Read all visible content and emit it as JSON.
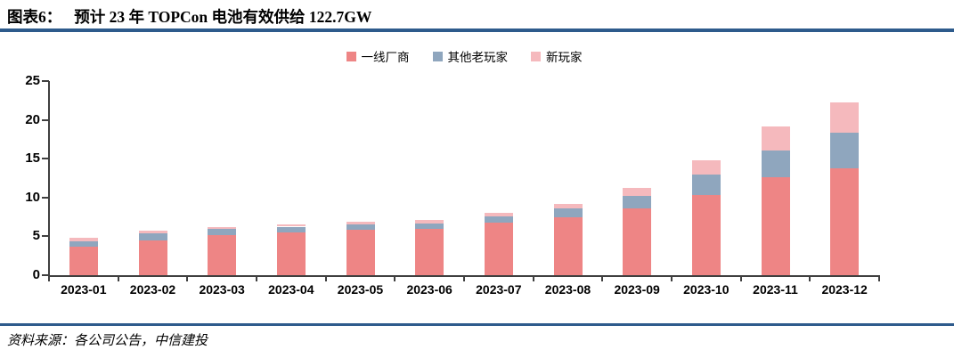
{
  "figure": {
    "label": "图表6：",
    "title": "预计 23 年 TOPCon 电池有效供给 122.7GW"
  },
  "chart_data": {
    "type": "bar",
    "stacked": true,
    "title": "预计 23 年 TOPCon 电池有效供给 122.7GW",
    "categories": [
      "2023-01",
      "2023-02",
      "2023-03",
      "2023-04",
      "2023-05",
      "2023-06",
      "2023-07",
      "2023-08",
      "2023-09",
      "2023-10",
      "2023-11",
      "2023-12"
    ],
    "series": [
      {
        "name": "一线厂商",
        "color": "#EE8585",
        "values": [
          3.7,
          4.5,
          5.2,
          5.55,
          5.8,
          5.95,
          6.8,
          7.4,
          8.65,
          10.35,
          12.65,
          13.75
        ]
      },
      {
        "name": "其他老玩家",
        "color": "#8FA6BE",
        "values": [
          0.7,
          0.9,
          0.75,
          0.7,
          0.75,
          0.75,
          0.75,
          1.15,
          1.6,
          2.6,
          3.35,
          4.55
        ]
      },
      {
        "name": "新玩家",
        "color": "#F5B9BD",
        "values": [
          0.45,
          0.3,
          0.3,
          0.3,
          0.3,
          0.45,
          0.45,
          0.6,
          0.95,
          1.85,
          3.2,
          3.9
        ]
      }
    ],
    "totals": [
      4.85,
      5.7,
      6.25,
      6.55,
      6.85,
      7.15,
      8.0,
      9.15,
      11.2,
      14.8,
      19.2,
      22.2
    ],
    "ylim": [
      0,
      25
    ],
    "yticks": [
      0,
      5,
      10,
      15,
      20,
      25
    ],
    "xlabel": "",
    "ylabel": "",
    "grid": false,
    "legend_position": "top-center"
  },
  "footer": {
    "source": "资料来源：各公司公告，中信建投"
  },
  "colors": {
    "header_rule": "#2E5B8C",
    "footer_rule": "#2E5B8C",
    "axis": "#3F3F3F"
  }
}
